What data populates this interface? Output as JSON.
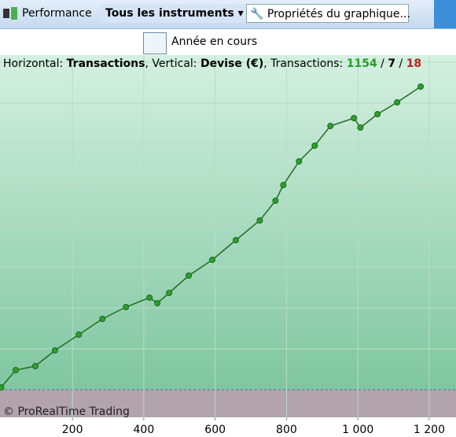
{
  "toolbar": {
    "performance": "Performance",
    "instruments": "Tous les instruments",
    "properties": "Propriétés du graphique...",
    "period": "Année en cours"
  },
  "info": {
    "horizontal_label": "Horizontal:",
    "horizontal_value": "Transactions",
    "vertical_label": ", Vertical:",
    "vertical_value": "Devise (€)",
    "count_label": ", Transactions:",
    "total": 1154,
    "sep1": "/",
    "winners": 7,
    "sep2": "/",
    "losers": 18
  },
  "watermark": "© ProRealTime Trading",
  "chart_data": {
    "type": "line",
    "x": [
      0,
      41,
      96,
      151,
      218,
      284,
      350,
      416,
      438,
      471,
      526,
      592,
      658,
      725,
      769,
      791,
      835,
      879,
      923,
      989,
      1007,
      1055,
      1110,
      1176
    ],
    "series": [
      {
        "color": "#2f9e2f",
        "values": [
          3,
          25,
          30,
          50,
          70,
          90,
          105,
          117,
          110,
          123,
          145,
          165,
          190,
          215,
          240,
          260,
          290,
          310,
          335,
          345,
          333,
          350,
          365,
          385
        ]
      }
    ],
    "xlim": [
      -3,
      1275
    ],
    "ylim": [
      -35,
      403
    ],
    "xticks": [
      200,
      400,
      600,
      800,
      {
        "value": 1000,
        "label": "1 000"
      },
      {
        "value": 1200,
        "label": "1 200"
      }
    ],
    "grid": true
  }
}
